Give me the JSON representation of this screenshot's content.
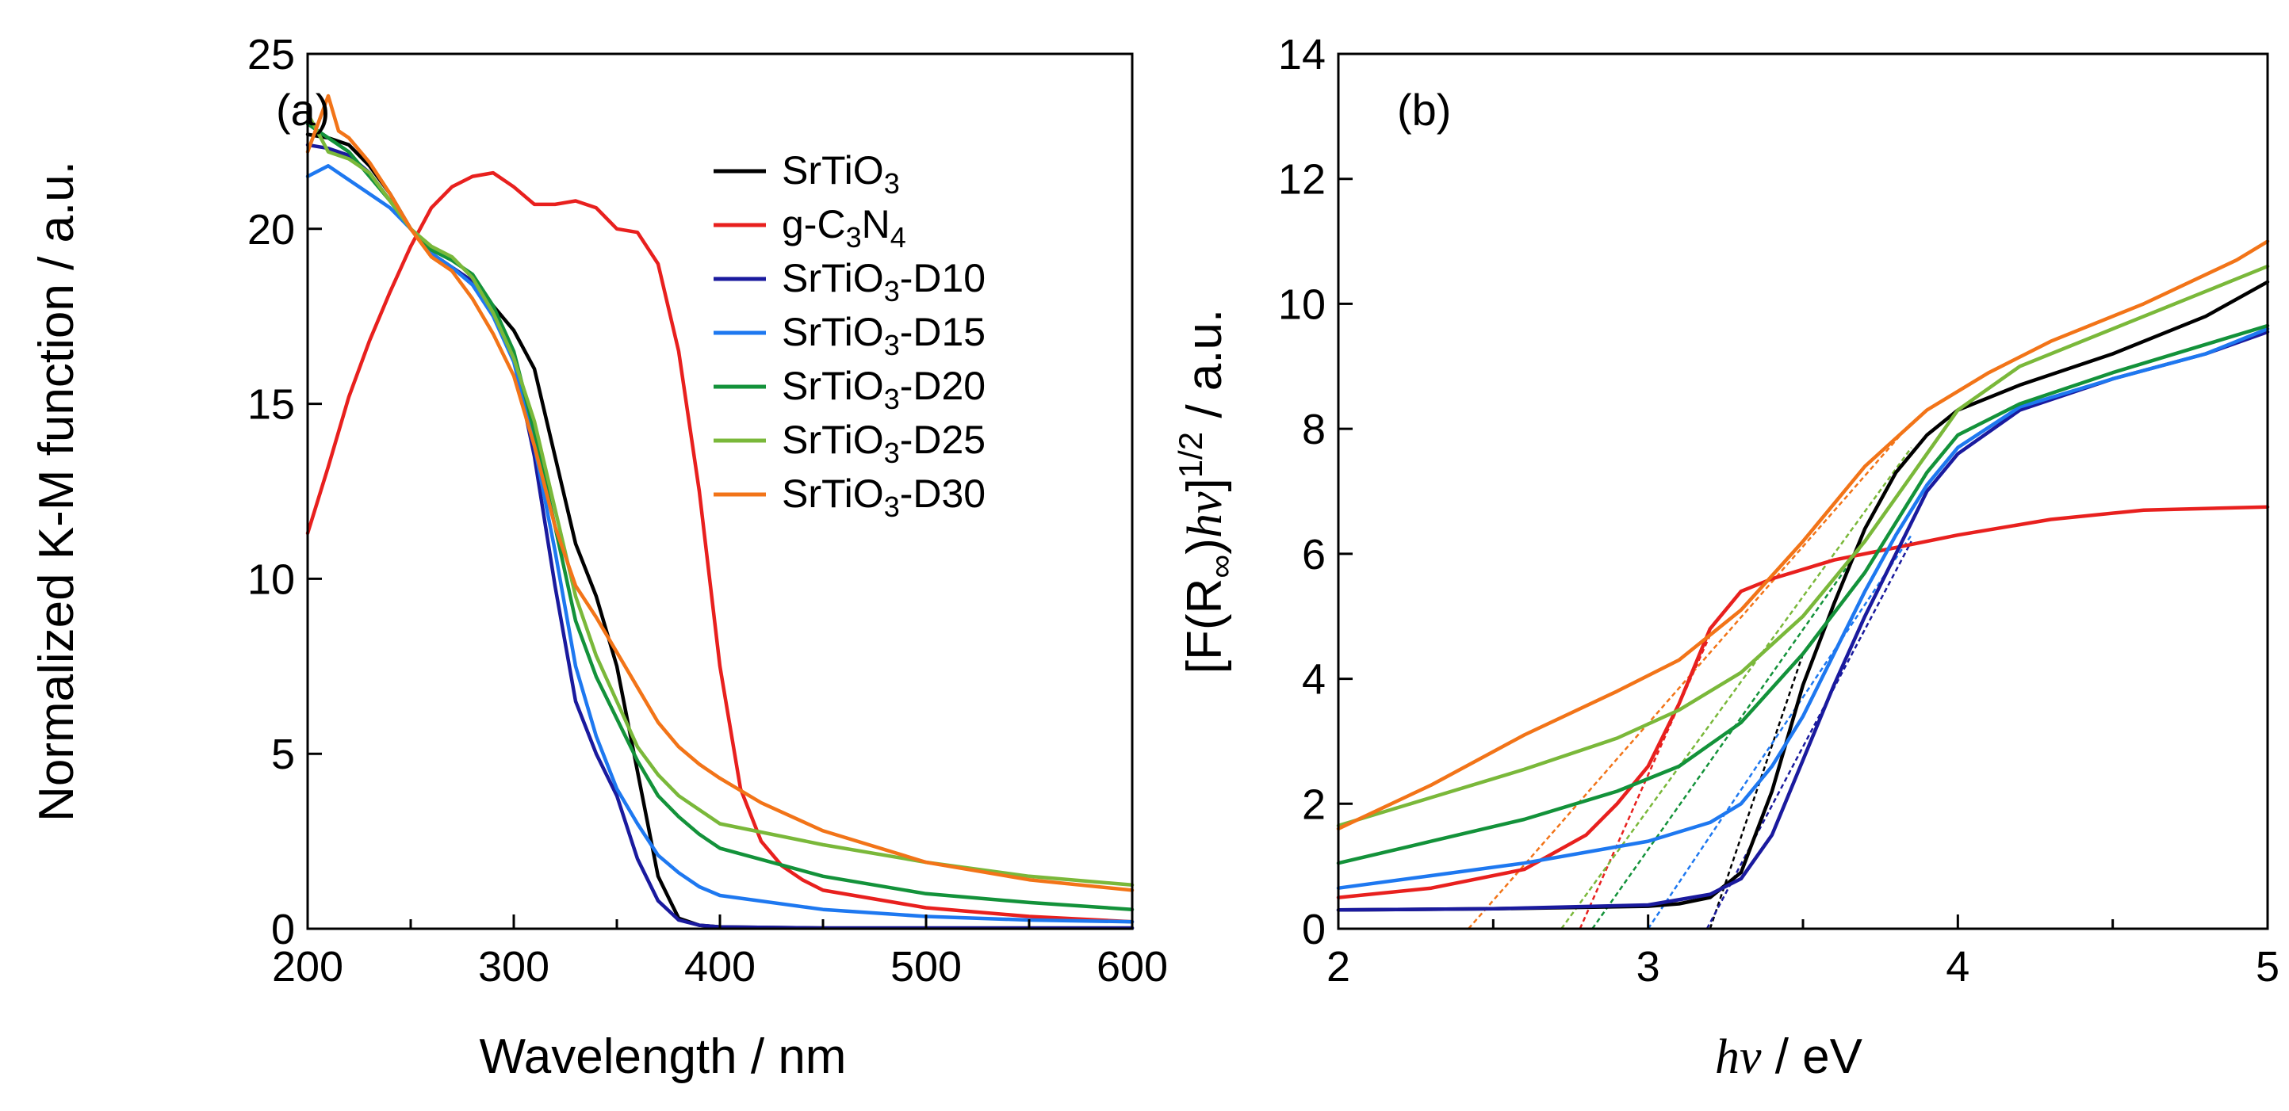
{
  "figure": {
    "panels": [
      "(a)",
      "(b)"
    ]
  },
  "chart_data": [
    {
      "type": "line",
      "panel_label": "(a)",
      "title": "",
      "xlabel": "Wavelength / nm",
      "ylabel": "Normalized K-M function / a.u.",
      "xlim": [
        200,
        600
      ],
      "ylim": [
        0,
        25
      ],
      "xticks": [
        200,
        300,
        400,
        500,
        600
      ],
      "yticks": [
        0,
        5,
        10,
        15,
        20,
        25
      ],
      "grid": false,
      "legend": {
        "placement": "top-right",
        "entries": [
          {
            "base": "SrTiO",
            "sub": "3",
            "suffix": "",
            "color": "#000000"
          },
          {
            "base": "g-C",
            "sub": "3",
            "mid": "N",
            "sub2": "4",
            "suffix": "",
            "color": "#e8201e"
          },
          {
            "base": "SrTiO",
            "sub": "3",
            "suffix": "-D10",
            "color": "#1a1a9e"
          },
          {
            "base": "SrTiO",
            "sub": "3",
            "suffix": "-D15",
            "color": "#1e78f0"
          },
          {
            "base": "SrTiO",
            "sub": "3",
            "suffix": "-D20",
            "color": "#13923a"
          },
          {
            "base": "SrTiO",
            "sub": "3",
            "suffix": "-D25",
            "color": "#7ab83a"
          },
          {
            "base": "SrTiO",
            "sub": "3",
            "suffix": "-D30",
            "color": "#f27418"
          }
        ]
      },
      "series": [
        {
          "name": "SrTiO3",
          "color": "#000000",
          "x": [
            200,
            210,
            220,
            230,
            240,
            250,
            260,
            270,
            280,
            290,
            300,
            310,
            320,
            330,
            340,
            350,
            360,
            370,
            380,
            390,
            400,
            450,
            500,
            550,
            600
          ],
          "y": [
            22.7,
            22.6,
            22.4,
            21.8,
            21.0,
            20.0,
            19.3,
            18.9,
            18.5,
            17.8,
            17.1,
            16.0,
            13.5,
            11.0,
            9.5,
            7.5,
            4.5,
            1.5,
            0.3,
            0.1,
            0.05,
            0.02,
            0.02,
            0.02,
            0.02
          ]
        },
        {
          "name": "g-C3N4",
          "color": "#e8201e",
          "x": [
            200,
            210,
            220,
            230,
            240,
            250,
            260,
            270,
            280,
            290,
            300,
            310,
            320,
            330,
            340,
            350,
            360,
            370,
            380,
            390,
            400,
            410,
            420,
            430,
            440,
            450,
            500,
            550,
            600
          ],
          "y": [
            11.3,
            13.2,
            15.2,
            16.8,
            18.2,
            19.5,
            20.6,
            21.2,
            21.5,
            21.6,
            21.2,
            20.7,
            20.7,
            20.8,
            20.6,
            20.0,
            19.9,
            19.0,
            16.5,
            12.5,
            7.5,
            4.0,
            2.5,
            1.8,
            1.4,
            1.1,
            0.6,
            0.35,
            0.2
          ]
        },
        {
          "name": "SrTiO3-D10",
          "color": "#1a1a9e",
          "x": [
            200,
            210,
            220,
            230,
            240,
            250,
            260,
            270,
            280,
            290,
            300,
            310,
            320,
            330,
            340,
            350,
            360,
            370,
            380,
            390,
            400,
            450,
            500,
            550,
            600
          ],
          "y": [
            22.4,
            22.3,
            22.1,
            21.6,
            20.8,
            20.0,
            19.3,
            18.9,
            18.5,
            17.6,
            16.3,
            13.5,
            9.8,
            6.5,
            5.0,
            3.8,
            2.0,
            0.8,
            0.25,
            0.1,
            0.05,
            0.02,
            0.02,
            0.02,
            0.02
          ]
        },
        {
          "name": "SrTiO3-D15",
          "color": "#1e78f0",
          "x": [
            200,
            210,
            220,
            230,
            240,
            250,
            260,
            270,
            280,
            290,
            300,
            310,
            320,
            330,
            340,
            350,
            360,
            370,
            380,
            390,
            400,
            450,
            500,
            550,
            600
          ],
          "y": [
            21.5,
            21.8,
            21.4,
            21.0,
            20.6,
            20.0,
            19.3,
            18.9,
            18.4,
            17.5,
            16.2,
            13.8,
            10.8,
            7.5,
            5.5,
            4.0,
            3.0,
            2.1,
            1.6,
            1.2,
            0.95,
            0.55,
            0.35,
            0.25,
            0.2
          ]
        },
        {
          "name": "SrTiO3-D20",
          "color": "#13923a",
          "x": [
            200,
            210,
            220,
            230,
            240,
            250,
            260,
            270,
            280,
            290,
            300,
            310,
            320,
            330,
            340,
            350,
            360,
            370,
            380,
            390,
            400,
            450,
            500,
            550,
            600
          ],
          "y": [
            23.0,
            22.6,
            22.2,
            21.5,
            20.8,
            20.0,
            19.4,
            19.1,
            18.7,
            17.8,
            16.5,
            14.2,
            11.5,
            8.8,
            7.2,
            6.0,
            4.8,
            3.8,
            3.2,
            2.7,
            2.3,
            1.5,
            1.0,
            0.75,
            0.55
          ]
        },
        {
          "name": "SrTiO3-D25",
          "color": "#7ab83a",
          "x": [
            200,
            210,
            220,
            230,
            240,
            250,
            260,
            270,
            280,
            290,
            300,
            310,
            320,
            330,
            340,
            350,
            360,
            370,
            380,
            390,
            400,
            450,
            500,
            550,
            600
          ],
          "y": [
            23.3,
            22.2,
            22.0,
            21.6,
            20.8,
            20.0,
            19.5,
            19.2,
            18.6,
            17.6,
            16.3,
            14.5,
            12.0,
            9.5,
            7.8,
            6.5,
            5.2,
            4.4,
            3.8,
            3.4,
            3.0,
            2.4,
            1.9,
            1.5,
            1.25
          ]
        },
        {
          "name": "SrTiO3-D30",
          "color": "#f27418",
          "x": [
            200,
            205,
            210,
            215,
            220,
            230,
            240,
            250,
            260,
            270,
            280,
            290,
            300,
            310,
            320,
            330,
            340,
            350,
            360,
            370,
            380,
            390,
            400,
            420,
            450,
            500,
            550,
            600
          ],
          "y": [
            22.2,
            23.0,
            23.8,
            22.8,
            22.6,
            21.9,
            21.0,
            20.0,
            19.2,
            18.8,
            18.0,
            17.0,
            15.8,
            13.8,
            11.5,
            9.8,
            8.9,
            7.9,
            6.9,
            5.9,
            5.2,
            4.7,
            4.3,
            3.6,
            2.8,
            1.9,
            1.4,
            1.1
          ]
        }
      ]
    },
    {
      "type": "line",
      "panel_label": "(b)",
      "title": "",
      "xlabel_parts": {
        "symbol": "hν",
        "unit": " / eV"
      },
      "ylabel_parts": {
        "main": "[F(R",
        "sub": "∞",
        "mid": ")",
        "symbol": "hν",
        "close": "]",
        "sup": "1/2",
        "unit": " / a.u."
      },
      "xlim": [
        2,
        5
      ],
      "ylim": [
        0,
        14
      ],
      "xticks": [
        2,
        3,
        4,
        5
      ],
      "yticks": [
        0,
        2,
        4,
        6,
        8,
        10,
        12,
        14
      ],
      "grid": false,
      "series": [
        {
          "name": "SrTiO3",
          "color": "#000000",
          "x": [
            2.0,
            2.5,
            3.0,
            3.1,
            3.2,
            3.3,
            3.4,
            3.5,
            3.6,
            3.7,
            3.8,
            3.9,
            4.0,
            4.2,
            4.5,
            4.8,
            5.0
          ],
          "y": [
            0.3,
            0.32,
            0.36,
            0.4,
            0.5,
            0.9,
            2.2,
            3.9,
            5.2,
            6.4,
            7.3,
            7.9,
            8.3,
            8.7,
            9.2,
            9.8,
            10.35
          ]
        },
        {
          "name": "g-C3N4",
          "color": "#e8201e",
          "x": [
            2.0,
            2.3,
            2.6,
            2.8,
            2.9,
            3.0,
            3.1,
            3.2,
            3.3,
            3.4,
            3.6,
            3.8,
            4.0,
            4.3,
            4.6,
            5.0
          ],
          "y": [
            0.5,
            0.65,
            0.95,
            1.5,
            2.0,
            2.6,
            3.6,
            4.8,
            5.4,
            5.6,
            5.9,
            6.1,
            6.3,
            6.55,
            6.7,
            6.75
          ]
        },
        {
          "name": "SrTiO3-D10",
          "color": "#1a1a9e",
          "x": [
            2.0,
            2.5,
            3.0,
            3.2,
            3.3,
            3.4,
            3.5,
            3.6,
            3.7,
            3.8,
            3.9,
            4.0,
            4.2,
            4.5,
            4.8,
            5.0
          ],
          "y": [
            0.3,
            0.32,
            0.38,
            0.55,
            0.8,
            1.5,
            2.7,
            3.9,
            5.0,
            6.0,
            7.0,
            7.6,
            8.3,
            8.8,
            9.2,
            9.55
          ]
        },
        {
          "name": "SrTiO3-D15",
          "color": "#1e78f0",
          "x": [
            2.0,
            2.3,
            2.6,
            3.0,
            3.2,
            3.3,
            3.4,
            3.5,
            3.6,
            3.7,
            3.8,
            3.9,
            4.0,
            4.2,
            4.5,
            4.8,
            5.0
          ],
          "y": [
            0.65,
            0.85,
            1.05,
            1.4,
            1.7,
            2.0,
            2.6,
            3.4,
            4.4,
            5.4,
            6.3,
            7.1,
            7.7,
            8.35,
            8.8,
            9.2,
            9.6
          ]
        },
        {
          "name": "SrTiO3-D20",
          "color": "#13923a",
          "x": [
            2.0,
            2.3,
            2.6,
            2.9,
            3.1,
            3.3,
            3.5,
            3.7,
            3.9,
            4.0,
            4.2,
            4.5,
            4.8,
            5.0
          ],
          "y": [
            1.05,
            1.4,
            1.75,
            2.2,
            2.6,
            3.3,
            4.4,
            5.7,
            7.3,
            7.9,
            8.4,
            8.9,
            9.35,
            9.65
          ]
        },
        {
          "name": "SrTiO3-D25",
          "color": "#7ab83a",
          "x": [
            2.0,
            2.3,
            2.6,
            2.9,
            3.1,
            3.3,
            3.5,
            3.7,
            3.9,
            4.0,
            4.2,
            4.5,
            4.8,
            5.0
          ],
          "y": [
            1.65,
            2.1,
            2.55,
            3.05,
            3.5,
            4.1,
            5.0,
            6.2,
            7.6,
            8.3,
            9.0,
            9.6,
            10.2,
            10.6
          ]
        },
        {
          "name": "SrTiO3-D30",
          "color": "#f27418",
          "x": [
            2.0,
            2.3,
            2.6,
            2.9,
            3.1,
            3.3,
            3.5,
            3.7,
            3.9,
            4.1,
            4.3,
            4.6,
            4.9,
            5.0
          ],
          "y": [
            1.6,
            2.3,
            3.1,
            3.8,
            4.3,
            5.1,
            6.2,
            7.4,
            8.3,
            8.9,
            9.4,
            10.0,
            10.7,
            11.0
          ]
        }
      ],
      "tangent_lines": [
        {
          "name": "SrTiO3 fit",
          "color": "#000000",
          "x": [
            3.2,
            3.5
          ],
          "y": [
            0.0,
            4.4
          ]
        },
        {
          "name": "g-C3N4 fit",
          "color": "#e8201e",
          "x": [
            2.78,
            3.2
          ],
          "y": [
            0.0,
            4.7
          ]
        },
        {
          "name": "SrTiO3-D10 fit",
          "color": "#1a1a9e",
          "x": [
            3.19,
            3.85
          ],
          "y": [
            0.0,
            6.2
          ]
        },
        {
          "name": "SrTiO3-D15 fit",
          "color": "#1e78f0",
          "x": [
            3.0,
            3.85
          ],
          "y": [
            0.0,
            6.3
          ]
        },
        {
          "name": "SrTiO3-D20 fit",
          "color": "#13923a",
          "x": [
            2.82,
            3.8
          ],
          "y": [
            0.0,
            6.9
          ]
        },
        {
          "name": "SrTiO3-D25 fit",
          "color": "#7ab83a",
          "x": [
            2.72,
            3.85
          ],
          "y": [
            0.0,
            7.7
          ]
        },
        {
          "name": "SrTiO3-D30 fit",
          "color": "#f27418",
          "x": [
            2.42,
            3.85
          ],
          "y": [
            0.0,
            8.1
          ]
        }
      ]
    }
  ]
}
